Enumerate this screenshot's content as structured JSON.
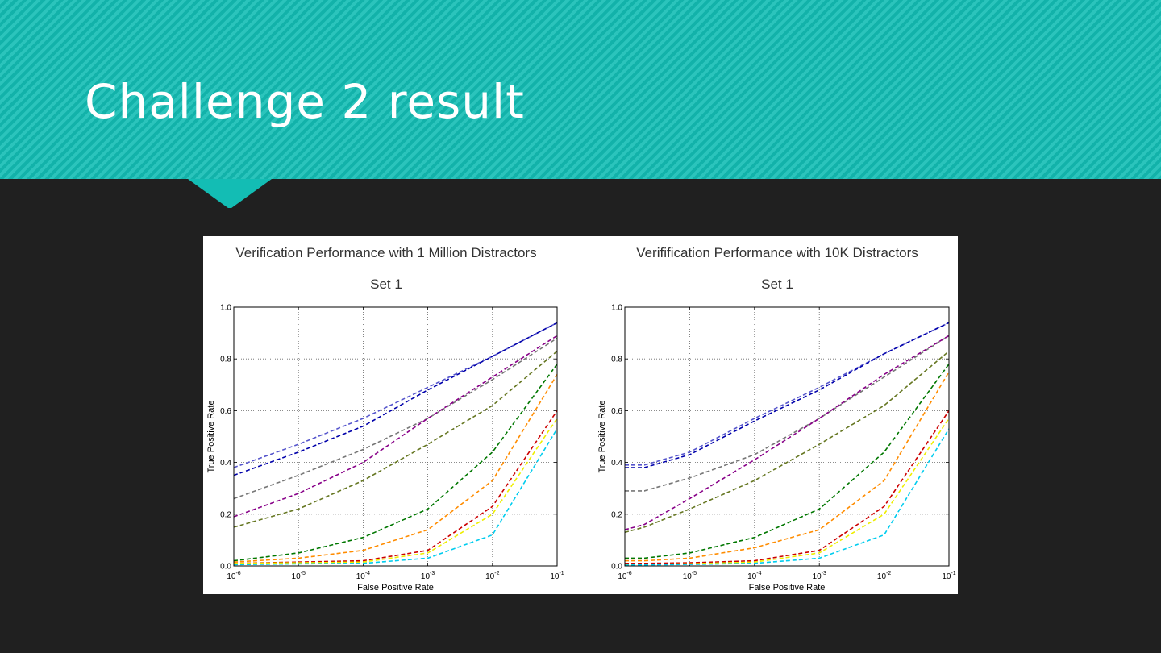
{
  "slide": {
    "title": "Challenge 2 result"
  },
  "colors": {
    "header": "#13bdb4",
    "background": "#202020"
  },
  "chart_data": [
    {
      "type": "line",
      "title": "Verification Performance with 1 Million Distractors",
      "subtitle": "Set 1",
      "xlabel": "False Positive Rate",
      "ylabel": "True Positive Rate",
      "xscale": "log",
      "xlim": [
        1e-06,
        0.1
      ],
      "ylim": [
        0,
        1.0
      ],
      "grid": true,
      "line_style": "dashed",
      "yticks": [
        "0.0",
        "0.2",
        "0.4",
        "0.6",
        "0.8",
        "1.0"
      ],
      "xticks": [
        {
          "base": "10",
          "exp": "-6"
        },
        {
          "base": "10",
          "exp": "-5"
        },
        {
          "base": "10",
          "exp": "-4"
        },
        {
          "base": "10",
          "exp": "-3"
        },
        {
          "base": "10",
          "exp": "-2"
        },
        {
          "base": "10",
          "exp": "-1"
        }
      ],
      "x": [
        1e-06,
        1e-05,
        0.0001,
        0.001,
        0.01,
        0.1
      ],
      "series": [
        {
          "color": "#5555cc",
          "values": [
            0.38,
            0.47,
            0.57,
            0.69,
            0.81,
            0.94
          ]
        },
        {
          "color": "#0000aa",
          "values": [
            0.35,
            0.44,
            0.54,
            0.68,
            0.81,
            0.94
          ]
        },
        {
          "color": "#777777",
          "values": [
            0.26,
            0.35,
            0.45,
            0.57,
            0.72,
            0.88
          ]
        },
        {
          "color": "#880088",
          "values": [
            0.19,
            0.28,
            0.4,
            0.57,
            0.73,
            0.89
          ]
        },
        {
          "color": "#667722",
          "values": [
            0.15,
            0.22,
            0.33,
            0.47,
            0.62,
            0.83
          ]
        },
        {
          "color": "#007700",
          "values": [
            0.02,
            0.05,
            0.11,
            0.22,
            0.44,
            0.78
          ]
        },
        {
          "color": "#ff8c00",
          "values": [
            0.015,
            0.03,
            0.06,
            0.14,
            0.33,
            0.74
          ]
        },
        {
          "color": "#cc0000",
          "values": [
            0.01,
            0.015,
            0.02,
            0.06,
            0.23,
            0.6
          ]
        },
        {
          "color": "#eeee00",
          "values": [
            0.01,
            0.012,
            0.015,
            0.05,
            0.2,
            0.57
          ]
        },
        {
          "color": "#00ccee",
          "values": [
            0.005,
            0.008,
            0.01,
            0.03,
            0.12,
            0.53
          ]
        }
      ]
    },
    {
      "type": "line",
      "title": "Verifification Performance with 10K Distractors",
      "subtitle": "Set 1",
      "xlabel": "False Positive Rate",
      "ylabel": "True Positive Rate",
      "xscale": "log",
      "xlim": [
        1e-06,
        0.1
      ],
      "ylim": [
        0,
        1.0
      ],
      "grid": true,
      "line_style": "dashed",
      "yticks": [
        "0.0",
        "0.2",
        "0.4",
        "0.6",
        "0.8",
        "1.0"
      ],
      "xticks": [
        {
          "base": "10",
          "exp": "-6"
        },
        {
          "base": "10",
          "exp": "-5"
        },
        {
          "base": "10",
          "exp": "-4"
        },
        {
          "base": "10",
          "exp": "-3"
        },
        {
          "base": "10",
          "exp": "-2"
        },
        {
          "base": "10",
          "exp": "-1"
        }
      ],
      "x": [
        1e-06,
        2e-06,
        1e-05,
        0.0001,
        0.001,
        0.01,
        0.1
      ],
      "series": [
        {
          "color": "#5555cc",
          "values": [
            0.39,
            0.39,
            0.44,
            0.57,
            0.69,
            0.82,
            0.94
          ]
        },
        {
          "color": "#0000aa",
          "values": [
            0.38,
            0.38,
            0.43,
            0.56,
            0.68,
            0.82,
            0.94
          ]
        },
        {
          "color": "#777777",
          "values": [
            0.29,
            0.29,
            0.34,
            0.43,
            0.57,
            0.73,
            0.89
          ]
        },
        {
          "color": "#880088",
          "values": [
            0.14,
            0.16,
            0.26,
            0.41,
            0.57,
            0.74,
            0.89
          ]
        },
        {
          "color": "#667722",
          "values": [
            0.13,
            0.15,
            0.22,
            0.33,
            0.47,
            0.62,
            0.83
          ]
        },
        {
          "color": "#007700",
          "values": [
            0.03,
            0.03,
            0.05,
            0.11,
            0.22,
            0.44,
            0.78
          ]
        },
        {
          "color": "#ff8c00",
          "values": [
            0.02,
            0.02,
            0.03,
            0.07,
            0.14,
            0.33,
            0.75
          ]
        },
        {
          "color": "#cc0000",
          "values": [
            0.01,
            0.01,
            0.012,
            0.02,
            0.06,
            0.23,
            0.6
          ]
        },
        {
          "color": "#eeee00",
          "values": [
            0.005,
            0.006,
            0.008,
            0.015,
            0.05,
            0.2,
            0.57
          ]
        },
        {
          "color": "#00ccee",
          "values": [
            0.003,
            0.004,
            0.006,
            0.01,
            0.03,
            0.12,
            0.53
          ]
        }
      ]
    }
  ]
}
